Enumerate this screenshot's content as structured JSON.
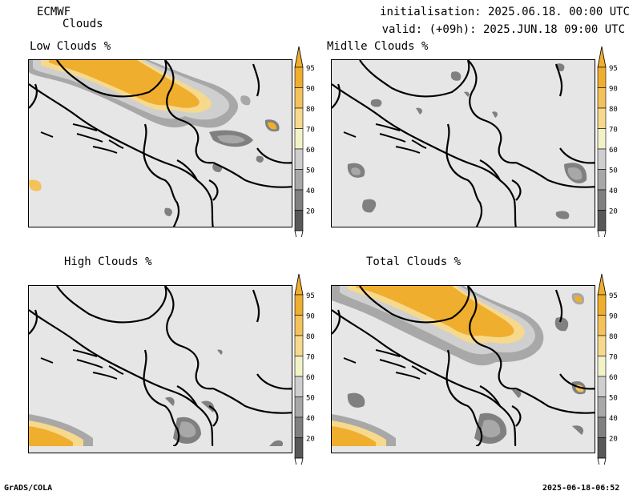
{
  "header": {
    "model": "ECMWF",
    "product": "Clouds",
    "init": "initialisation: 2025.06.18. 00:00 UTC",
    "valid": "valid: (+09h): 2025.JUN.18 09:00 UTC"
  },
  "panels": [
    {
      "title": "Low Clouds %"
    },
    {
      "title": "Midlle Clouds %"
    },
    {
      "title": "High Clouds %"
    },
    {
      "title": "Total Clouds %"
    }
  ],
  "colorbar": {
    "labels": [
      "95",
      "90",
      "80",
      "70",
      "60",
      "50",
      "40",
      "20"
    ],
    "colors": [
      "#efae2e",
      "#f3c25a",
      "#f6d98d",
      "#f2f2c8",
      "#cfcfcf",
      "#a8a8a8",
      "#808080",
      "#585858"
    ]
  },
  "footer": {
    "left": "GrADS/COLA",
    "right": "2025-06-18-06:52"
  }
}
